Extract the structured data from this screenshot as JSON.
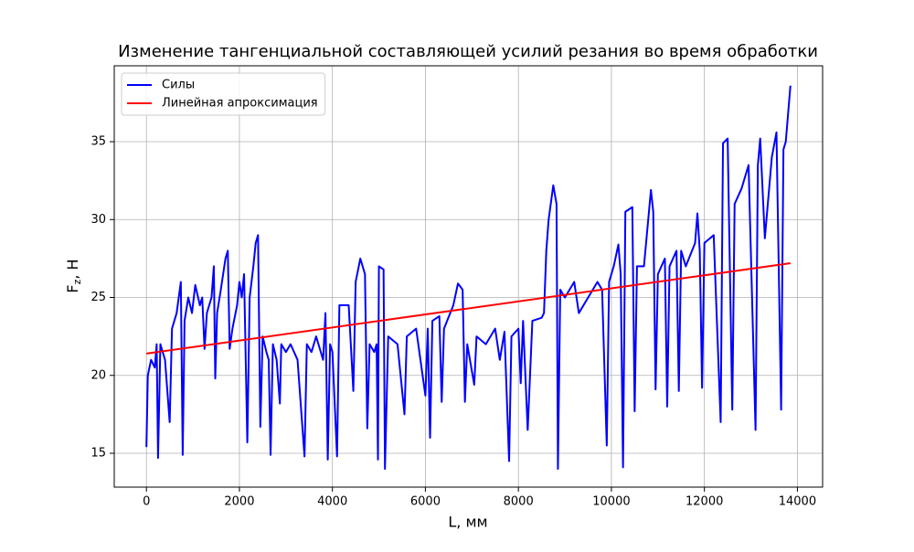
{
  "chart_data": {
    "type": "line",
    "title": "Изменение тангенциальной составляющей усилий резания во время обработки",
    "xlabel": "L, мм",
    "ylabel": [
      "F",
      "z",
      ", H"
    ],
    "xlim": [
      -692,
      14542
    ],
    "ylim": [
      12.83,
      39.87
    ],
    "xticks": [
      0,
      2000,
      4000,
      6000,
      8000,
      10000,
      12000,
      14000
    ],
    "yticks": [
      15,
      20,
      25,
      30,
      35
    ],
    "grid": true,
    "legend": "upper left",
    "series": [
      {
        "name": "Силы",
        "color": "#0000ff",
        "x": [
          0,
          30,
          100,
          180,
          220,
          250,
          300,
          400,
          500,
          550,
          650,
          740,
          780,
          820,
          900,
          980,
          1050,
          1150,
          1200,
          1250,
          1300,
          1400,
          1450,
          1480,
          1520,
          1600,
          1700,
          1750,
          1790,
          1850,
          1950,
          2000,
          2050,
          2100,
          2170,
          2220,
          2300,
          2350,
          2400,
          2450,
          2500,
          2580,
          2630,
          2670,
          2720,
          2800,
          2870,
          2900,
          3000,
          3100,
          3250,
          3400,
          3450,
          3550,
          3650,
          3800,
          3850,
          3900,
          3950,
          4000,
          4100,
          4150,
          4350,
          4450,
          4500,
          4600,
          4700,
          4750,
          4800,
          4900,
          4950,
          4980,
          5000,
          5100,
          5130,
          5200,
          5400,
          5550,
          5600,
          5800,
          6000,
          6050,
          6100,
          6150,
          6300,
          6350,
          6400,
          6600,
          6700,
          6800,
          6850,
          6900,
          7050,
          7100,
          7300,
          7500,
          7600,
          7700,
          7800,
          7850,
          8000,
          8050,
          8100,
          8200,
          8300,
          8500,
          8550,
          8600,
          8650,
          8750,
          8820,
          8850,
          8900,
          9000,
          9200,
          9300,
          9500,
          9700,
          9800,
          9900,
          9950,
          10050,
          10150,
          10200,
          10250,
          10300,
          10450,
          10500,
          10550,
          10700,
          10850,
          10900,
          10950,
          11000,
          11150,
          11200,
          11250,
          11400,
          11450,
          11500,
          11600,
          11800,
          11850,
          11900,
          11950,
          12000,
          12200,
          12350,
          12400,
          12500,
          12600,
          12650,
          12800,
          12950,
          13100,
          13150,
          13200,
          13300,
          13450,
          13550,
          13650,
          13700,
          13750,
          13850
        ],
        "values": [
          15.4,
          20,
          21,
          20.5,
          22,
          14.7,
          22,
          21,
          17,
          23,
          24,
          26,
          14.9,
          23.5,
          25,
          24,
          25.8,
          24.5,
          25,
          21.7,
          24,
          25,
          27,
          19.8,
          24,
          25.5,
          27.5,
          28,
          21.7,
          23,
          24.5,
          26,
          25,
          26.5,
          15.7,
          25,
          27,
          28.5,
          29,
          16.7,
          22.5,
          21.5,
          21,
          14.9,
          22,
          21,
          18.2,
          22,
          21.5,
          22,
          21,
          14.8,
          22,
          21.5,
          22.5,
          21,
          24,
          14.6,
          22,
          21.5,
          14.8,
          24.5,
          24.5,
          19,
          26,
          27.5,
          26.5,
          16.6,
          22,
          21.5,
          22,
          14.6,
          27,
          26.8,
          14,
          22.5,
          22,
          17.5,
          22.5,
          23,
          18.7,
          23,
          16,
          23.5,
          23.8,
          18.3,
          23,
          24.5,
          25.9,
          25.5,
          18.3,
          22,
          19.4,
          22.5,
          22,
          23,
          21,
          22.8,
          14.5,
          22.5,
          23,
          19.5,
          23.5,
          16.5,
          23.5,
          23.7,
          24,
          28,
          30,
          32.2,
          31,
          14,
          25.5,
          25,
          26,
          24,
          25,
          26,
          25.5,
          15.5,
          26,
          27,
          28.4,
          26.5,
          14.1,
          30.5,
          30.8,
          17.7,
          27,
          27,
          31.9,
          30.5,
          19.1,
          26.5,
          27.5,
          18,
          27,
          28,
          19,
          28,
          27,
          28.5,
          30.4,
          28,
          19.2,
          28.5,
          29,
          17,
          34.9,
          35.2,
          17.8,
          31,
          32,
          33.5,
          16.5,
          33.5,
          35.2,
          28.8,
          34,
          35.6,
          17.8,
          34.5,
          35,
          38.6
        ]
      },
      {
        "name": "Линейная апроксимация",
        "color": "#ff0000",
        "x": [
          0,
          13850
        ],
        "values": [
          21.4,
          27.2
        ]
      }
    ]
  }
}
